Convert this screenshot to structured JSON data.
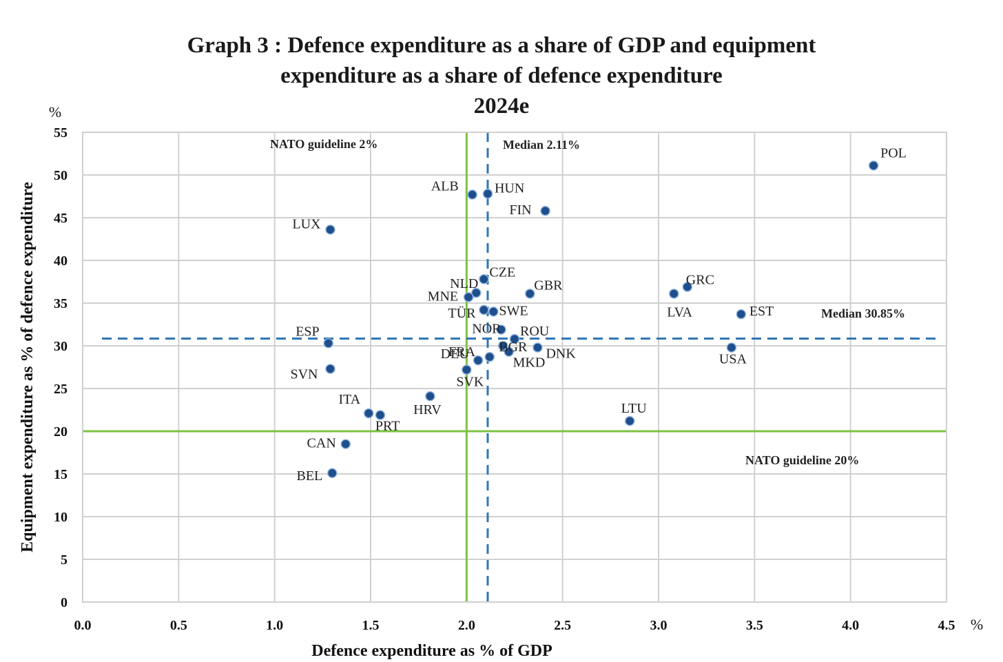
{
  "title": {
    "line1": "Graph 3 : Defence expenditure as a share of GDP and equipment",
    "line2": "expenditure as a share of defence expenditure",
    "line3": "2024e"
  },
  "chart_data": {
    "type": "scatter",
    "xlabel": "Defence expenditure as % of GDP",
    "ylabel": "Equipment expenditure as % of defence expenditure",
    "x_unit": "%",
    "y_unit": "%",
    "xlim": [
      0,
      4.5
    ],
    "ylim": [
      0,
      55
    ],
    "x_ticks": [
      "0.0",
      "0.5",
      "1.0",
      "1.5",
      "2.0",
      "2.5",
      "3.0",
      "3.5",
      "4.0",
      "4.5"
    ],
    "y_ticks": [
      "0",
      "5",
      "10",
      "15",
      "20",
      "25",
      "30",
      "35",
      "40",
      "45",
      "50",
      "55"
    ],
    "grid": true,
    "point_color": "#1f4e8c",
    "guideline_color": "#7dc242",
    "median_color": "#2e75b6",
    "reference_lines": [
      {
        "kind": "vertical",
        "style": "solid",
        "x": 2.0,
        "label": "NATO guideline 2%"
      },
      {
        "kind": "horizontal",
        "style": "solid",
        "y": 20,
        "label": "NATO guideline 20%"
      },
      {
        "kind": "vertical",
        "style": "dashed",
        "x": 2.11,
        "label": "Median 2.11%"
      },
      {
        "kind": "horizontal",
        "style": "dashed",
        "y": 30.85,
        "label": "Median 30.85%"
      }
    ],
    "points": [
      {
        "label": "POL",
        "x": 4.12,
        "y": 51.1
      },
      {
        "label": "ALB",
        "x": 2.03,
        "y": 47.7
      },
      {
        "label": "HUN",
        "x": 2.11,
        "y": 47.8
      },
      {
        "label": "FIN",
        "x": 2.41,
        "y": 45.8
      },
      {
        "label": "LUX",
        "x": 1.29,
        "y": 43.6
      },
      {
        "label": "CZE",
        "x": 2.09,
        "y": 37.8
      },
      {
        "label": "NLD",
        "x": 2.05,
        "y": 36.2
      },
      {
        "label": "MNE",
        "x": 2.01,
        "y": 35.7
      },
      {
        "label": "GBR",
        "x": 2.33,
        "y": 36.1
      },
      {
        "label": "GRC",
        "x": 3.15,
        "y": 36.9
      },
      {
        "label": "LVA",
        "x": 3.08,
        "y": 36.1
      },
      {
        "label": "TÜR",
        "x": 2.09,
        "y": 34.2
      },
      {
        "label": "SWE",
        "x": 2.14,
        "y": 34.0
      },
      {
        "label": "EST",
        "x": 3.43,
        "y": 33.7
      },
      {
        "label": "ESP",
        "x": 1.28,
        "y": 30.3
      },
      {
        "label": "NOR",
        "x": 2.18,
        "y": 31.9
      },
      {
        "label": "ROU",
        "x": 2.25,
        "y": 30.8
      },
      {
        "label": "BGR",
        "x": 2.19,
        "y": 30.0
      },
      {
        "label": "DNK",
        "x": 2.37,
        "y": 29.8
      },
      {
        "label": "MKD",
        "x": 2.22,
        "y": 29.3
      },
      {
        "label": "USA",
        "x": 3.38,
        "y": 29.8
      },
      {
        "label": "DEU",
        "x": 2.12,
        "y": 28.7
      },
      {
        "label": "FRA",
        "x": 2.06,
        "y": 28.3
      },
      {
        "label": "SVK",
        "x": 2.0,
        "y": 27.2
      },
      {
        "label": "SVN",
        "x": 1.29,
        "y": 27.3
      },
      {
        "label": "HRV",
        "x": 1.81,
        "y": 24.1
      },
      {
        "label": "ITA",
        "x": 1.49,
        "y": 22.1
      },
      {
        "label": "PRT",
        "x": 1.55,
        "y": 21.9
      },
      {
        "label": "LTU",
        "x": 2.85,
        "y": 21.2
      },
      {
        "label": "CAN",
        "x": 1.37,
        "y": 18.5
      },
      {
        "label": "BEL",
        "x": 1.3,
        "y": 15.1
      }
    ]
  }
}
